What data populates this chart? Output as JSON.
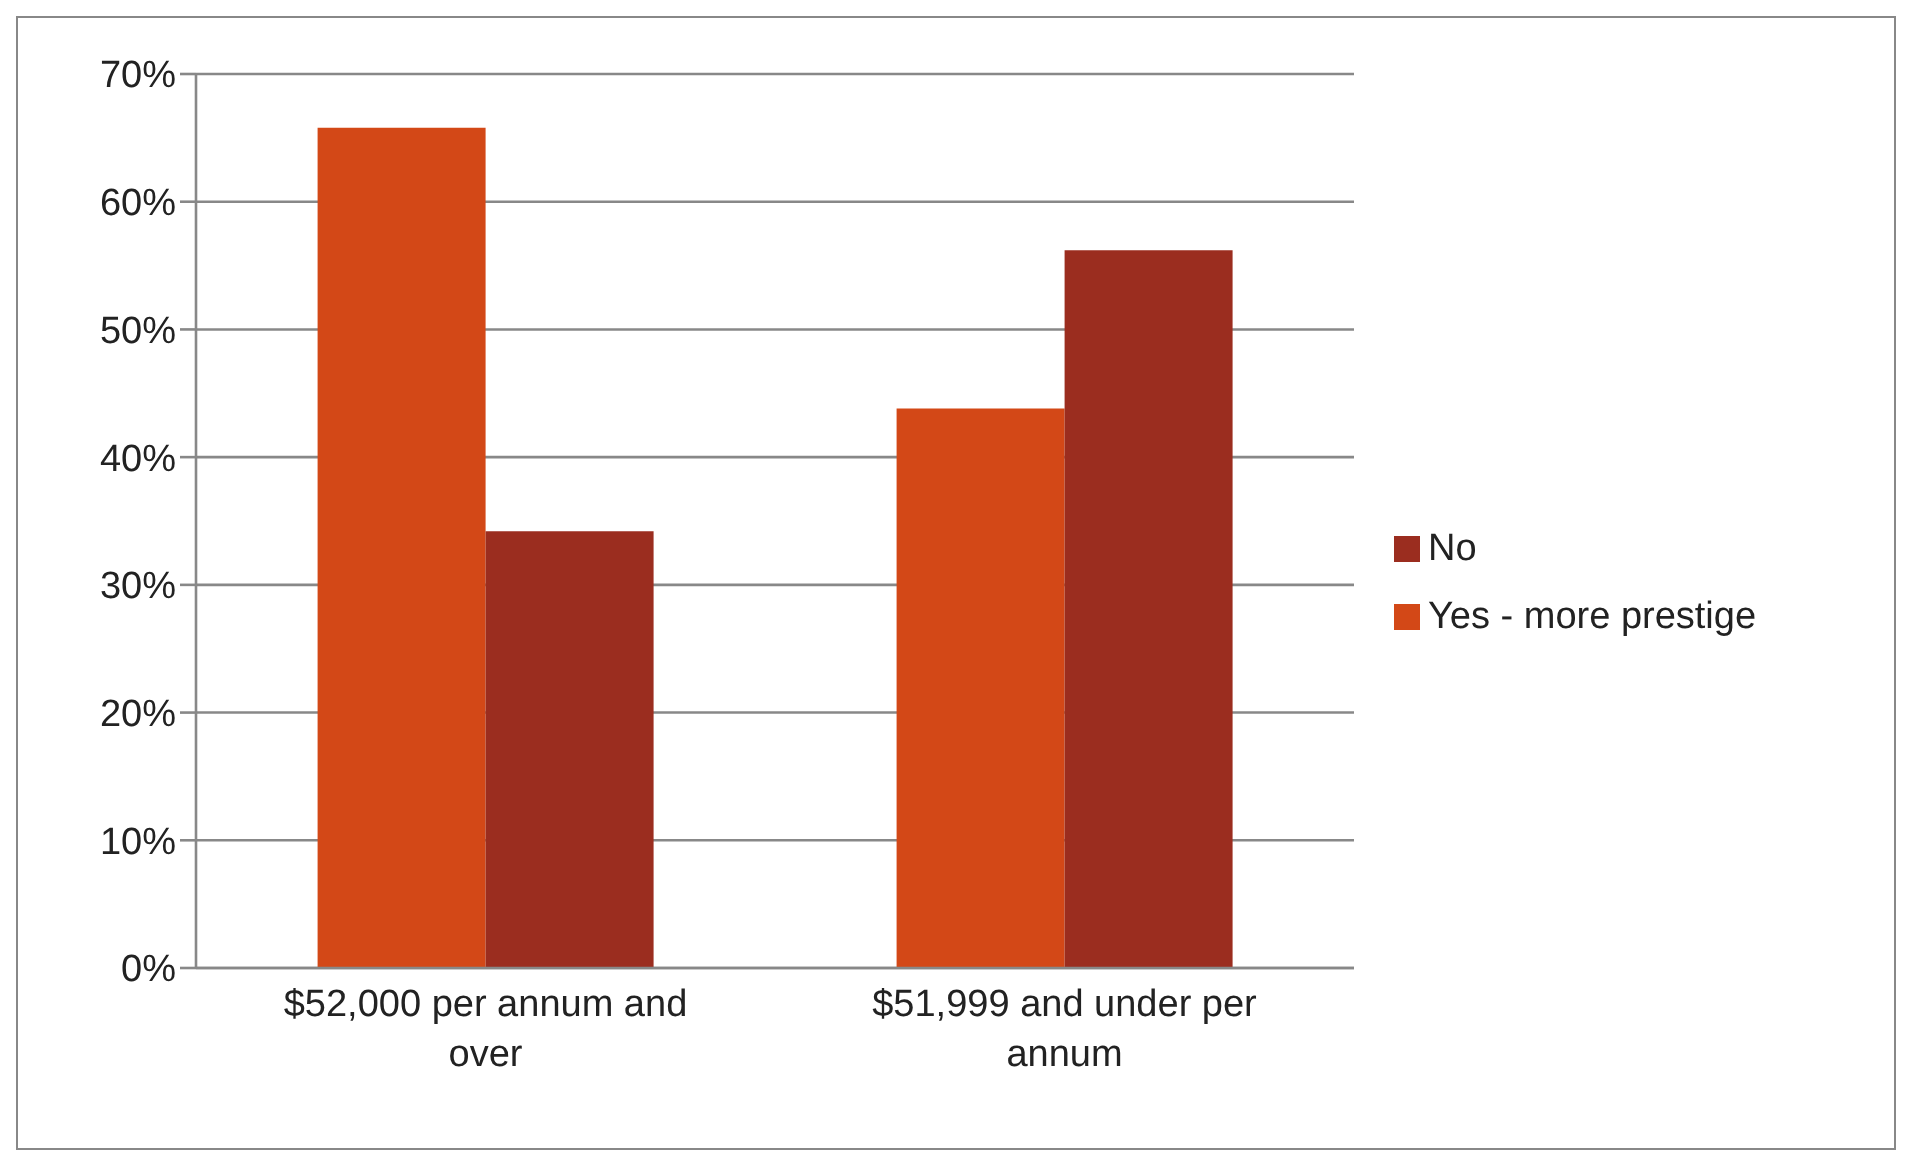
{
  "chart_data": {
    "type": "bar",
    "categories": [
      "$52,000 per annum and over",
      "$51,999 and under per annum"
    ],
    "series": [
      {
        "name": "Yes - more prestige",
        "color": "#d34817",
        "values": [
          65.8,
          43.8
        ]
      },
      {
        "name": "No",
        "color": "#9b2d1f",
        "values": [
          34.2,
          56.2
        ]
      }
    ],
    "ylim": [
      0,
      70
    ],
    "yticks": [
      {
        "value": 0,
        "label": "0%"
      },
      {
        "value": 10,
        "label": "10%"
      },
      {
        "value": 20,
        "label": "20%"
      },
      {
        "value": 30,
        "label": "30%"
      },
      {
        "value": 40,
        "label": "40%"
      },
      {
        "value": 50,
        "label": "50%"
      },
      {
        "value": 60,
        "label": "60%"
      },
      {
        "value": 70,
        "label": "70%"
      }
    ],
    "grid": "y",
    "legend": "right"
  }
}
